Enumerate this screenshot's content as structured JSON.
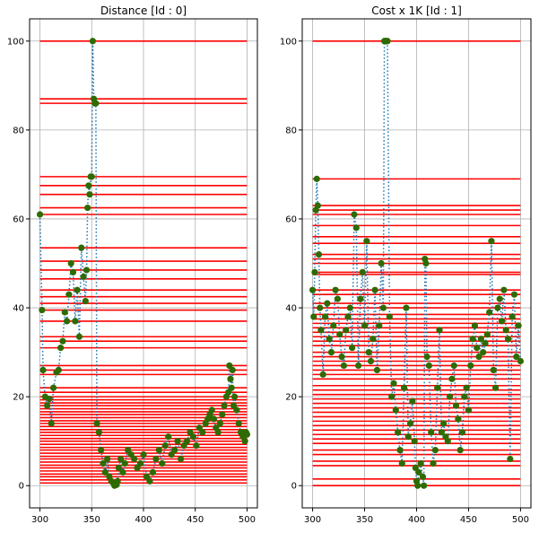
{
  "chart_data": [
    {
      "type": "scatter",
      "title": "Distance    [Id   : 0]",
      "xlim": [
        290,
        510
      ],
      "ylim": [
        -5,
        105
      ],
      "xticks": [
        "300",
        "350",
        "400",
        "450",
        "500"
      ],
      "yticks": [
        "0",
        "20",
        "40",
        "60",
        "80",
        "100"
      ],
      "grid": true,
      "hline_span": [
        300,
        500
      ],
      "hlines": [
        100,
        87,
        86,
        69.5,
        67.5,
        65.5,
        62.5,
        61,
        53.5,
        50.5,
        48.5,
        46.5,
        44,
        42.5,
        41,
        39.5,
        37,
        33.5,
        32.5,
        31,
        27,
        26,
        25,
        22,
        21,
        20,
        19.3,
        18.6,
        18,
        17.3,
        16.6,
        16,
        15.3,
        14.6,
        14,
        13.3,
        12.6,
        12,
        11.3,
        10.6,
        10,
        9.3,
        8.6,
        8,
        7.3,
        6.6,
        6,
        5.3,
        4.6,
        4,
        3.3,
        2.6,
        2,
        1.3,
        0.6
      ],
      "x": [
        300,
        302,
        303,
        305,
        307,
        309,
        311,
        313,
        316,
        318,
        320,
        322,
        324,
        326,
        328,
        330,
        332,
        334,
        336,
        338,
        340,
        342,
        344,
        345,
        346,
        347,
        348,
        349,
        350,
        351,
        352,
        353,
        354,
        355,
        357,
        359,
        361,
        363,
        365,
        367,
        369,
        371,
        372,
        373,
        374,
        375,
        376,
        378,
        380,
        382,
        385,
        388,
        391,
        394,
        397,
        400,
        403,
        406,
        409,
        412,
        415,
        418,
        421,
        424,
        427,
        430,
        433,
        436,
        439,
        442,
        445,
        448,
        451,
        454,
        457,
        460,
        462,
        464,
        466,
        468,
        470,
        472,
        474,
        476,
        478,
        480,
        482,
        483,
        484,
        485,
        486,
        487,
        488,
        490,
        492,
        494,
        496,
        498,
        499,
        500
      ],
      "y": [
        61,
        39.5,
        26,
        20,
        18,
        19.5,
        14,
        22,
        25.5,
        26,
        31,
        32.5,
        39,
        37,
        43,
        50,
        48,
        37,
        44,
        33.5,
        53.5,
        47,
        41.5,
        48.5,
        62.5,
        67.5,
        65.5,
        69.5,
        69.5,
        100,
        87,
        86,
        86,
        14,
        12,
        8,
        5,
        3,
        6,
        2,
        1,
        0.5,
        0,
        0.5,
        0.2,
        1,
        4,
        6,
        3,
        5,
        8,
        7,
        6,
        4,
        5,
        7,
        2,
        1,
        3,
        6,
        8,
        5,
        9,
        11,
        7,
        8,
        10,
        6,
        9,
        10,
        12,
        11,
        9,
        13,
        12,
        14,
        15,
        16,
        17,
        15,
        13,
        12,
        14,
        16,
        18,
        20,
        21,
        27,
        24,
        22,
        26,
        18,
        20,
        17,
        14,
        12,
        11,
        10,
        12,
        11.5
      ],
      "marker_color": "#2e6b00",
      "line_color": "#1f77b4",
      "hline_color": "#ff0000"
    },
    {
      "type": "scatter",
      "title": "Cost x 1K    [Id   : 1]",
      "xlim": [
        290,
        510
      ],
      "ylim": [
        -5,
        105
      ],
      "xticks": [
        "300",
        "350",
        "400",
        "450",
        "500"
      ],
      "yticks": [
        "0",
        "20",
        "40",
        "60",
        "80",
        "100"
      ],
      "grid": true,
      "hline_span": [
        300,
        500
      ],
      "hlines": [
        100,
        69,
        63,
        62,
        61,
        58.5,
        56,
        54.5,
        52,
        51,
        50,
        48,
        47.5,
        44,
        43,
        41,
        40,
        38.5,
        37.5,
        36.5,
        35.5,
        34.5,
        33.5,
        32.5,
        31.5,
        30,
        29,
        28,
        27,
        26,
        25,
        24,
        22.5,
        21.5,
        20.5,
        19.5,
        18.5,
        17.5,
        16.5,
        15.5,
        14.5,
        13.5,
        12.5,
        11.5,
        10.5,
        9.5,
        8,
        7,
        5.5,
        4.5,
        1.5,
        0
      ],
      "x": [
        300,
        301,
        302,
        303,
        304,
        305,
        306,
        307,
        308,
        310,
        312,
        314,
        316,
        318,
        320,
        322,
        324,
        326,
        328,
        330,
        332,
        334,
        336,
        338,
        340,
        342,
        344,
        346,
        348,
        350,
        352,
        354,
        356,
        358,
        360,
        362,
        364,
        366,
        368,
        369,
        370,
        371,
        372,
        374,
        376,
        378,
        380,
        382,
        384,
        386,
        388,
        390,
        392,
        394,
        396,
        398,
        399,
        400,
        401,
        402,
        404,
        406,
        407,
        408,
        409,
        410,
        412,
        414,
        416,
        418,
        420,
        422,
        424,
        426,
        428,
        430,
        432,
        434,
        436,
        438,
        440,
        442,
        444,
        446,
        448,
        450,
        452,
        454,
        456,
        458,
        460,
        462,
        464,
        466,
        468,
        470,
        472,
        474,
        476,
        478,
        480,
        482,
        484,
        486,
        488,
        490,
        492,
        494,
        496,
        498,
        500
      ],
      "y": [
        44,
        38,
        48,
        62,
        69,
        63,
        52,
        40,
        35,
        25,
        38,
        41,
        33,
        30,
        36,
        44,
        42,
        34,
        29,
        27,
        35,
        38,
        40,
        31,
        61,
        58,
        27,
        42,
        48,
        36,
        55,
        30,
        28,
        33,
        44,
        26,
        36,
        50,
        40,
        100,
        100,
        100,
        100,
        38,
        20,
        23,
        17,
        12,
        8,
        5,
        22,
        40,
        11,
        14,
        19,
        10,
        4,
        1,
        0,
        3,
        5,
        2,
        0,
        51,
        50,
        29,
        27,
        12,
        5,
        8,
        22,
        35,
        12,
        14,
        11,
        10,
        20,
        24,
        27,
        18,
        15,
        8,
        12,
        20,
        22,
        17,
        27,
        33,
        36,
        31,
        29,
        33,
        30,
        32,
        34,
        39,
        55,
        26,
        22,
        40,
        42,
        37,
        44,
        35,
        33,
        6,
        38,
        43,
        29,
        36,
        28
      ],
      "marker_color": "#2e6b00",
      "line_color": "#1f77b4",
      "hline_color": "#ff0000"
    }
  ]
}
